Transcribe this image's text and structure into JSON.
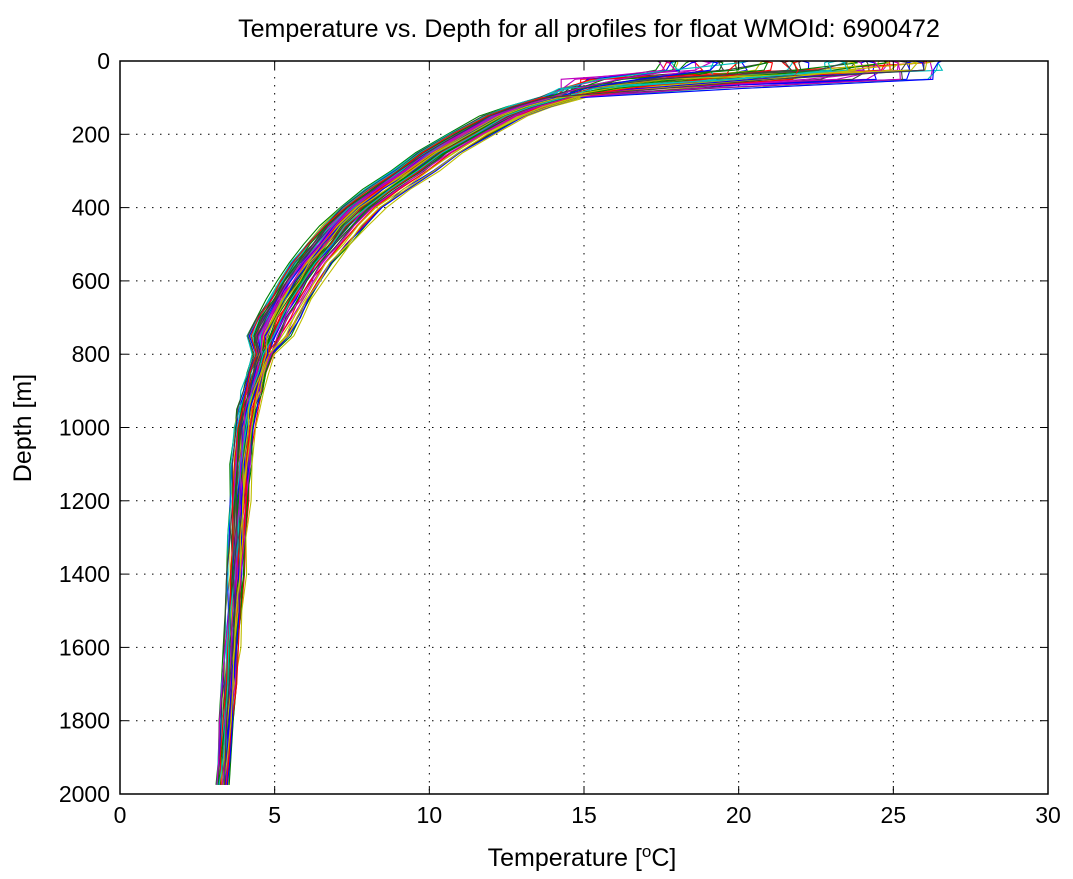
{
  "chart_data": {
    "type": "line",
    "title": "Temperature vs. Depth for all profiles for float WMOId: 6900472",
    "xlabel_prefix": "Temperature [",
    "xlabel_sup": "o",
    "xlabel_suffix": "C]",
    "ylabel": "Depth [m]",
    "xlim": [
      0,
      30
    ],
    "ylim": [
      0,
      2000
    ],
    "y_reversed": true,
    "grid": true,
    "legend": "none",
    "x_ticks": [
      0,
      5,
      10,
      15,
      20,
      25,
      30
    ],
    "y_ticks": [
      0,
      200,
      400,
      600,
      800,
      1000,
      1200,
      1400,
      1600,
      1800,
      2000
    ],
    "series_colors": [
      "#0000ff",
      "#008000",
      "#ff0000",
      "#00bfbf",
      "#bf00bf",
      "#bfbf00",
      "#404040"
    ],
    "profile_count": 70,
    "representative_profiles": [
      {
        "depth": [
          5,
          20,
          40,
          60,
          80,
          100,
          120,
          150,
          200,
          300,
          400,
          500,
          600,
          700,
          800,
          850,
          900,
          1000,
          1200,
          1400,
          1600,
          1800,
          1975
        ],
        "temperature": [
          26.0,
          26.0,
          25.0,
          21.0,
          17.0,
          15.0,
          14.0,
          12.8,
          11.7,
          9.5,
          7.9,
          6.9,
          6.0,
          5.2,
          4.7,
          4.4,
          4.2,
          4.0,
          3.8,
          3.7,
          3.6,
          3.45,
          3.35
        ]
      },
      {
        "depth": [
          5,
          20,
          50,
          100,
          150,
          200,
          300,
          400,
          500,
          600,
          700,
          800,
          900,
          1000,
          1200,
          1400,
          1600,
          1800,
          1975
        ],
        "temperature": [
          21.0,
          21.0,
          18.0,
          14.0,
          12.0,
          11.0,
          9.7,
          8.2,
          7.0,
          6.2,
          5.4,
          4.8,
          4.3,
          4.1,
          3.9,
          3.75,
          3.6,
          3.45,
          3.3
        ]
      },
      {
        "depth": [
          5,
          30,
          60,
          100,
          150,
          200,
          300,
          400,
          500,
          600,
          700,
          800,
          900,
          1000,
          1200,
          1400,
          1600,
          1800,
          1975
        ],
        "temperature": [
          24.5,
          24.5,
          20.0,
          15.5,
          13.0,
          11.8,
          10.2,
          8.8,
          7.5,
          6.5,
          5.6,
          5.0,
          4.5,
          4.2,
          3.95,
          3.8,
          3.65,
          3.5,
          3.35
        ]
      }
    ]
  }
}
